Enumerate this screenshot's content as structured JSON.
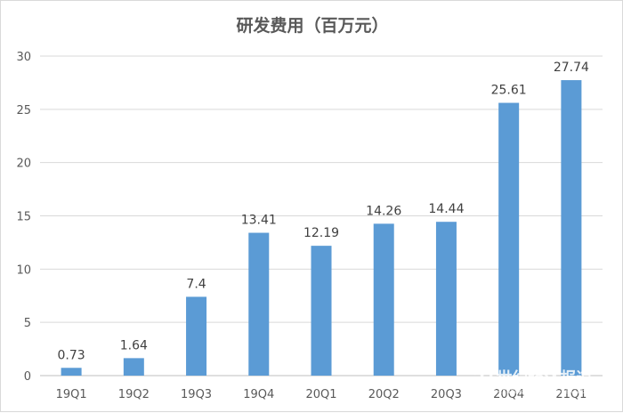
{
  "chart_data": {
    "type": "bar",
    "title": "研发费用（百万元）",
    "xlabel": "",
    "ylabel": "",
    "categories": [
      "19Q1",
      "19Q2",
      "19Q3",
      "19Q4",
      "20Q1",
      "20Q2",
      "20Q3",
      "20Q4",
      "21Q1"
    ],
    "values": [
      0.73,
      1.64,
      7.4,
      13.41,
      12.19,
      14.26,
      14.44,
      25.61,
      27.74
    ],
    "value_labels": [
      "0.73",
      "1.64",
      "7.4",
      "13.41",
      "12.19",
      "14.26",
      "14.44",
      "25.61",
      "27.74"
    ],
    "ylim": [
      0,
      30
    ],
    "yticks": [
      "0",
      "5",
      "10",
      "15",
      "20",
      "25",
      "30"
    ],
    "grid": true,
    "legend": "none",
    "bar_color": "#5b9bd5"
  },
  "watermark": {
    "text": "21世纪经济报道",
    "subtext": "21ST CENTURY BUSINESS HERALD"
  }
}
